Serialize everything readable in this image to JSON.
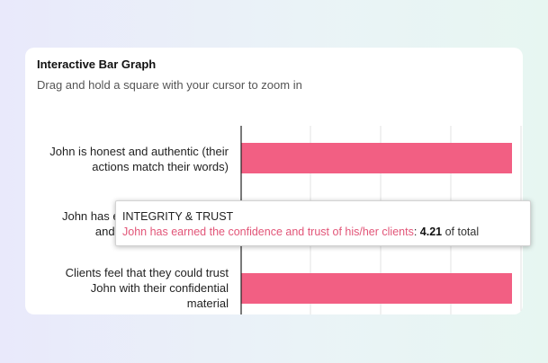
{
  "card": {
    "title": "Interactive Bar Graph",
    "subtitle": "Drag and hold a square with your cursor to zoom in"
  },
  "chart_data": {
    "type": "bar",
    "orientation": "horizontal",
    "categories": [
      "John is honest and authentic (their actions match their words)",
      "John has earned the confidence and trust of his/her clients",
      "Clients feel that they could trust John with their confidential material"
    ],
    "category_lines": [
      [
        "John is honest and authentic (their",
        "actions match their words)"
      ],
      [
        "John has earned the confidence",
        "and trust of his/her clients"
      ],
      [
        "Clients feel that they could trust",
        "John with their confidential",
        "material"
      ]
    ],
    "values": [
      4.3,
      4.21,
      4.3
    ],
    "bar_color": "#f25f83",
    "grid": true
  },
  "tooltip": {
    "title": "INTEGRITY & TRUST",
    "label": "John has earned the confidence and trust of his/her clients",
    "separator": ": ",
    "value": "4.21",
    "suffix": " of total"
  }
}
